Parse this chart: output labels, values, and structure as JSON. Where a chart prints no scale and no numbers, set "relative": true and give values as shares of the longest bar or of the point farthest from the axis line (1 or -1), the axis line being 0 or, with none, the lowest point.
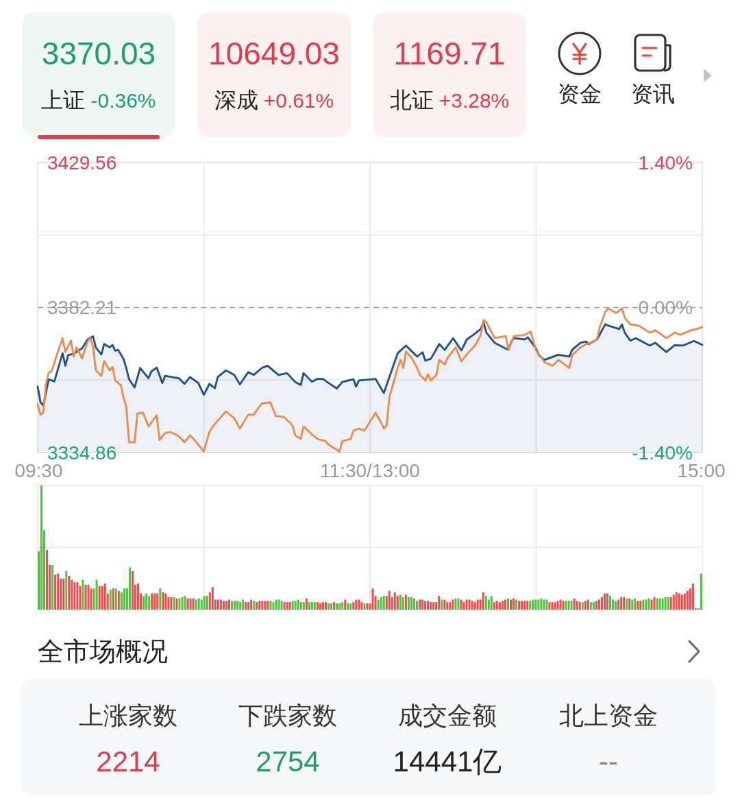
{
  "chart_data": [
    {
      "type": "other",
      "categories": [
        "上证",
        "深成",
        "北证"
      ],
      "value_labels": [
        "3370.03",
        "10649.03",
        "1169.71"
      ],
      "annotations": [
        "-0.36%",
        "+0.61%",
        "+3.28%"
      ],
      "colors": [
        "#1f9e6c",
        "#e03c4a",
        "#e03c4a"
      ]
    },
    {
      "type": "other",
      "annotations": [
        "资金",
        "资讯"
      ]
    },
    {
      "type": "line",
      "tick_labels": "y",
      "xlim": [
        9.5,
        15
      ],
      "xticks": [
        {
          "value": 9.5,
          "label": "09:30"
        },
        {
          "value": 10.875,
          "label": null
        },
        {
          "value": 12.25,
          "label": "11:30/13:00"
        },
        {
          "value": 13.625,
          "label": null
        },
        {
          "value": 15,
          "label": "15:00"
        }
      ],
      "ylim": [
        3334.86,
        3429.56
      ],
      "yticks": [
        3334.86,
        {
          "value": 3358.54,
          "label": null
        },
        3382.21,
        {
          "value": 3405.89,
          "label": null
        },
        3429.56
      ],
      "y2lim": [
        -1.4,
        1.4
      ],
      "y2ticks": [
        {
          "value": -1.4,
          "label": "-1.40%"
        },
        {
          "value": 0,
          "label": "0.00%"
        },
        {
          "value": 1.4,
          "label": "1.40%"
        }
      ],
      "ref_lines": [
        {
          "axis": "y",
          "value": 3382.21,
          "color": "#9a9a9a",
          "line_style": "dashed"
        }
      ],
      "grid": true,
      "series": [
        {
          "type": "area",
          "color": "#1d4f91",
          "x": [
            9.5,
            9.523,
            9.546,
            9.592,
            9.615,
            9.638,
            9.706,
            9.729,
            9.752,
            9.798,
            9.867,
            9.913,
            9.958,
            9.981,
            10.027,
            10.05,
            10.096,
            10.119,
            10.142,
            10.165,
            10.21,
            10.233,
            10.256,
            10.302,
            10.348,
            10.417,
            10.44,
            10.485,
            10.531,
            10.554,
            10.669,
            10.715,
            10.76,
            10.829,
            10.875,
            10.921,
            10.967,
            10.99,
            11.058,
            11.127,
            11.173,
            11.242,
            11.288,
            11.356,
            11.402,
            11.494,
            11.563,
            11.631,
            11.677,
            11.7,
            11.769,
            11.815,
            11.86,
            11.906,
            11.975,
            12.021,
            12.113,
            12.135,
            12.158,
            12.296,
            12.365,
            12.41,
            12.479,
            12.548,
            12.64,
            12.685,
            12.708,
            12.754,
            12.823,
            12.869,
            12.938,
            13.006,
            13.052,
            13.098,
            13.167,
            13.19,
            13.213,
            13.281,
            13.396,
            13.419,
            13.442,
            13.533,
            13.556,
            13.625,
            13.648,
            13.694,
            13.808,
            13.9,
            13.923,
            13.992,
            14.038,
            14.06,
            14.129,
            14.198,
            14.221,
            14.313,
            14.335,
            14.358,
            14.404,
            14.45,
            14.565,
            14.61,
            14.702,
            14.771,
            14.84,
            14.931,
            15
          ],
          "values": [
            3356.4,
            3351.3,
            3350.2,
            3358.8,
            3358.4,
            3358.1,
            3367.3,
            3363.2,
            3366.7,
            3367.1,
            3368.9,
            3371.8,
            3372.8,
            3369.2,
            3366.9,
            3370.3,
            3369.2,
            3370.0,
            3368.1,
            3368.4,
            3365.5,
            3362.5,
            3358.8,
            3356.1,
            3362.5,
            3359.1,
            3361.3,
            3362.6,
            3357.6,
            3359.9,
            3359.1,
            3357.3,
            3359.5,
            3357.6,
            3353.7,
            3357.3,
            3355.9,
            3359.5,
            3361.7,
            3360.2,
            3357.1,
            3361.1,
            3360.2,
            3362.5,
            3363.2,
            3360.2,
            3360.8,
            3357.9,
            3356.9,
            3360.8,
            3358.0,
            3358.9,
            3358.9,
            3357.6,
            3355.8,
            3357.9,
            3358.8,
            3356.4,
            3358.4,
            3358.9,
            3354.3,
            3359.5,
            3367.3,
            3369.8,
            3366.2,
            3367.6,
            3364.9,
            3365.5,
            3370.3,
            3368.4,
            3372.2,
            3368.2,
            3371.8,
            3373.1,
            3375.2,
            3377.4,
            3374.0,
            3370.7,
            3368.4,
            3371.1,
            3372.2,
            3371.8,
            3372.5,
            3368.8,
            3366.6,
            3365.1,
            3366.8,
            3366.2,
            3368.4,
            3370.7,
            3371.1,
            3370.3,
            3371.8,
            3376.8,
            3376.3,
            3375.2,
            3376.7,
            3374.0,
            3371.4,
            3372.2,
            3369.8,
            3370.7,
            3367.7,
            3369.9,
            3369.8,
            3371.3,
            3370.0
          ]
        },
        {
          "type": "line",
          "color": "#ec8a4c",
          "x": [
            9.5,
            9.523,
            9.546,
            9.569,
            9.592,
            9.615,
            9.66,
            9.706,
            9.729,
            9.775,
            9.798,
            9.821,
            9.867,
            9.913,
            9.935,
            9.958,
            9.981,
            10.027,
            10.05,
            10.096,
            10.119,
            10.142,
            10.188,
            10.21,
            10.233,
            10.256,
            10.302,
            10.325,
            10.371,
            10.417,
            10.485,
            10.508,
            10.554,
            10.6,
            10.669,
            10.715,
            10.76,
            10.806,
            10.875,
            10.921,
            10.944,
            10.99,
            11.058,
            11.127,
            11.173,
            11.242,
            11.288,
            11.333,
            11.356,
            11.425,
            11.471,
            11.54,
            11.608,
            11.631,
            11.677,
            11.7,
            11.769,
            11.815,
            11.883,
            11.906,
            11.998,
            12.021,
            12.09,
            12.113,
            12.158,
            12.204,
            12.296,
            12.342,
            12.365,
            12.388,
            12.41,
            12.479,
            12.502,
            12.525,
            12.548,
            12.594,
            12.64,
            12.663,
            12.708,
            12.731,
            12.754,
            12.8,
            12.823,
            12.869,
            12.892,
            12.96,
            13.006,
            13.052,
            13.121,
            13.167,
            13.19,
            13.213,
            13.281,
            13.373,
            13.396,
            13.442,
            13.533,
            13.579,
            13.625,
            13.671,
            13.694,
            13.763,
            13.808,
            13.9,
            13.923,
            13.992,
            14.038,
            14.083,
            14.129,
            14.152,
            14.198,
            14.221,
            14.29,
            14.335,
            14.358,
            14.404,
            14.473,
            14.565,
            14.61,
            14.679,
            14.702,
            14.771,
            14.817,
            14.908,
            14.954,
            15
          ],
          "values": [
            3350.7,
            3347.2,
            3347.9,
            3357.3,
            3361.0,
            3361.3,
            3366.9,
            3372.2,
            3367.7,
            3371.4,
            3366.2,
            3369.2,
            3365.6,
            3371.1,
            3372.2,
            3369.6,
            3361.7,
            3359.9,
            3364.7,
            3361.7,
            3362.8,
            3358.4,
            3356.9,
            3352.8,
            3349.8,
            3338.2,
            3338.2,
            3347.6,
            3347.9,
            3343.4,
            3347.0,
            3339.0,
            3341.2,
            3341.6,
            3340.1,
            3338.2,
            3340.5,
            3338.6,
            3335.2,
            3341.6,
            3343.1,
            3345.3,
            3348.3,
            3346.1,
            3342.7,
            3347.2,
            3347.2,
            3349.8,
            3350.9,
            3351.3,
            3346.8,
            3346.4,
            3343.8,
            3340.5,
            3339.3,
            3343.4,
            3340.8,
            3339.3,
            3338.6,
            3337.5,
            3335.2,
            3338.6,
            3339.3,
            3342.0,
            3342.7,
            3342.0,
            3347.9,
            3344.6,
            3342.7,
            3343.8,
            3352.8,
            3362.5,
            3365.1,
            3362.5,
            3367.8,
            3365.8,
            3362.5,
            3360.2,
            3358.4,
            3360.4,
            3358.4,
            3360.2,
            3365.1,
            3363.6,
            3365.8,
            3369.2,
            3364.6,
            3366.9,
            3369.9,
            3373.3,
            3378.1,
            3377.4,
            3372.2,
            3372.9,
            3368.4,
            3372.9,
            3373.3,
            3374.4,
            3368.1,
            3365.8,
            3364.3,
            3363.2,
            3365.1,
            3362.5,
            3366.6,
            3369.2,
            3370.3,
            3370.7,
            3371.8,
            3375.9,
            3380.8,
            3381.9,
            3380.4,
            3382.0,
            3378.9,
            3376.7,
            3376.3,
            3374.0,
            3374.8,
            3372.9,
            3372.2,
            3374.0,
            3373.3,
            3374.8,
            3375.2,
            3375.8
          ]
        }
      ]
    },
    {
      "type": "bar",
      "relative": true,
      "grid": true,
      "categories": [
        "09:30",
        null,
        null,
        null,
        null,
        null,
        null,
        null,
        null,
        null,
        null,
        null,
        null,
        null,
        null,
        null,
        null,
        null,
        null,
        null,
        null,
        null,
        null,
        null,
        null,
        null,
        null,
        null,
        null,
        null,
        null,
        null,
        null,
        null,
        null,
        null,
        null,
        null,
        null,
        null,
        null,
        null,
        null,
        null,
        null,
        null,
        null,
        null,
        null,
        null,
        null,
        null,
        null,
        null,
        null,
        null,
        null,
        null,
        null,
        null,
        null,
        null,
        null,
        null,
        null,
        null,
        null,
        null,
        null,
        null,
        null,
        null,
        null,
        null,
        null,
        null,
        null,
        null,
        null,
        null,
        null,
        null,
        null,
        null,
        null,
        null,
        null,
        null,
        null,
        null,
        null,
        null,
        null,
        null,
        null,
        null,
        null,
        null,
        null,
        null,
        null,
        null,
        null,
        null,
        null,
        null,
        null,
        null,
        null,
        null,
        null,
        null,
        null,
        null,
        null,
        null,
        null,
        null,
        null,
        null,
        "11:30/13:00",
        null,
        null,
        null,
        null,
        null,
        null,
        null,
        null,
        null,
        null,
        null,
        null,
        null,
        null,
        null,
        null,
        null,
        null,
        null,
        null,
        null,
        null,
        null,
        null,
        null,
        null,
        null,
        null,
        null,
        null,
        null,
        null,
        null,
        null,
        null,
        null,
        null,
        null,
        null,
        null,
        null,
        null,
        null,
        null,
        null,
        null,
        null,
        null,
        null,
        null,
        null,
        null,
        null,
        null,
        null,
        null,
        null,
        null,
        null,
        null,
        null,
        null,
        null,
        null,
        null,
        null,
        null,
        null,
        null,
        null,
        null,
        null,
        null,
        null,
        null,
        null,
        null,
        null,
        null,
        null,
        null,
        null,
        null,
        null,
        null,
        null,
        null,
        null,
        null,
        null,
        null,
        null,
        null,
        null,
        null,
        null,
        null,
        null,
        null,
        null,
        null,
        null,
        null,
        null,
        null,
        null,
        null,
        null,
        null,
        null,
        null,
        null,
        null,
        null,
        null,
        null,
        null,
        null,
        null,
        "15:00"
      ],
      "values": [
        0.47,
        1.0,
        0.64,
        0.48,
        0.36,
        0.36,
        0.28,
        0.29,
        0.25,
        0.25,
        0.31,
        0.27,
        0.24,
        0.22,
        0.22,
        0.19,
        0.24,
        0.2,
        0.2,
        0.17,
        0.17,
        0.24,
        0.19,
        0.19,
        0.21,
        0.13,
        0.16,
        0.17,
        0.17,
        0.15,
        0.14,
        0.17,
        0.17,
        0.34,
        0.31,
        0.2,
        0.21,
        0.13,
        0.11,
        0.13,
        0.11,
        0.13,
        0.13,
        0.13,
        0.17,
        0.14,
        0.13,
        0.1,
        0.1,
        0.1,
        0.09,
        0.09,
        0.1,
        0.11,
        0.09,
        0.09,
        0.09,
        0.08,
        0.09,
        0.08,
        0.11,
        0.11,
        0.14,
        0.18,
        0.08,
        0.08,
        0.08,
        0.07,
        0.07,
        0.08,
        0.07,
        0.07,
        0.07,
        0.06,
        0.08,
        0.06,
        0.06,
        0.08,
        0.07,
        0.06,
        0.07,
        0.07,
        0.07,
        0.07,
        0.07,
        0.06,
        0.08,
        0.08,
        0.07,
        0.06,
        0.06,
        0.06,
        0.07,
        0.07,
        0.08,
        0.06,
        0.06,
        0.09,
        0.06,
        0.06,
        0.06,
        0.06,
        0.05,
        0.06,
        0.06,
        0.05,
        0.05,
        0.06,
        0.05,
        0.05,
        0.06,
        0.08,
        0.05,
        0.05,
        0.06,
        0.08,
        0.08,
        0.06,
        0.05,
        0.05,
        0.05,
        0.17,
        0.11,
        0.08,
        0.1,
        0.11,
        0.11,
        0.15,
        0.1,
        0.14,
        0.11,
        0.12,
        0.1,
        0.12,
        0.1,
        0.1,
        0.09,
        0.07,
        0.08,
        0.08,
        0.07,
        0.07,
        0.06,
        0.06,
        0.06,
        0.11,
        0.08,
        0.08,
        0.06,
        0.06,
        0.08,
        0.09,
        0.09,
        0.08,
        0.06,
        0.08,
        0.08,
        0.07,
        0.06,
        0.08,
        0.08,
        0.14,
        0.11,
        0.08,
        0.11,
        0.06,
        0.07,
        0.06,
        0.07,
        0.08,
        0.09,
        0.08,
        0.09,
        0.08,
        0.07,
        0.07,
        0.07,
        0.07,
        0.07,
        0.08,
        0.08,
        0.08,
        0.09,
        0.08,
        0.08,
        0.06,
        0.06,
        0.06,
        0.07,
        0.08,
        0.07,
        0.07,
        0.07,
        0.07,
        0.09,
        0.07,
        0.06,
        0.06,
        0.07,
        0.08,
        0.06,
        0.06,
        0.07,
        0.08,
        0.1,
        0.13,
        0.13,
        0.11,
        0.08,
        0.07,
        0.08,
        0.1,
        0.1,
        0.09,
        0.09,
        0.08,
        0.09,
        0.07,
        0.07,
        0.08,
        0.08,
        0.09,
        0.08,
        0.1,
        0.09,
        0.09,
        0.09,
        0.1,
        0.1,
        0.1,
        0.12,
        0.14,
        0.13,
        0.12,
        0.13,
        0.15,
        0.17,
        0.21,
        0.01,
        0.01,
        0.29
      ],
      "colors": [
        "#4cc43a",
        "#4cc43a",
        "#4cc43a",
        "#f04a4c",
        "#f04a4c",
        "#4cc43a",
        "#f04a4c",
        "#f04a4c",
        "#f04a4c",
        "#f04a4c",
        "#4cc43a",
        "#f04a4c",
        "#f04a4c",
        "#f04a4c",
        "#f04a4c",
        "#f04a4c",
        "#4cc43a",
        "#f04a4c",
        "#f04a4c",
        "#f04a4c",
        "#4cc43a",
        "#4cc43a",
        "#f04a4c",
        "#f04a4c",
        "#f04a4c",
        "#f04a4c",
        "#4cc43a",
        "#f04a4c",
        "#4cc43a",
        "#f04a4c",
        "#4cc43a",
        "#4cc43a",
        "#4cc43a",
        "#4cc43a",
        "#f04a4c",
        "#f04a4c",
        "#f04a4c",
        "#f04a4c",
        "#4cc43a",
        "#4cc43a",
        "#4cc43a",
        "#f04a4c",
        "#f04a4c",
        "#f04a4c",
        "#4cc43a",
        "#f04a4c",
        "#f04a4c",
        "#f04a4c",
        "#f04a4c",
        "#4cc43a",
        "#f04a4c",
        "#4cc43a",
        "#4cc43a",
        "#4cc43a",
        "#f04a4c",
        "#f04a4c",
        "#f04a4c",
        "#4cc43a",
        "#4cc43a",
        "#4cc43a",
        "#4cc43a",
        "#4cc43a",
        "#f04a4c",
        "#f04a4c",
        "#f04a4c",
        "#f04a4c",
        "#f04a4c",
        "#f04a4c",
        "#f04a4c",
        "#f04a4c",
        "#4cc43a",
        "#4cc43a",
        "#4cc43a",
        "#4cc43a",
        "#4cc43a",
        "#f04a4c",
        "#f04a4c",
        "#f04a4c",
        "#4cc43a",
        "#f04a4c",
        "#f04a4c",
        "#f04a4c",
        "#f04a4c",
        "#f04a4c",
        "#4cc43a",
        "#4cc43a",
        "#4cc43a",
        "#4cc43a",
        "#4cc43a",
        "#f04a4c",
        "#f04a4c",
        "#f04a4c",
        "#4cc43a",
        "#4cc43a",
        "#4cc43a",
        "#4cc43a",
        "#4cc43a",
        "#f04a4c",
        "#4cc43a",
        "#4cc43a",
        "#4cc43a",
        "#f04a4c",
        "#f04a4c",
        "#f04a4c",
        "#f04a4c",
        "#4cc43a",
        "#4cc43a",
        "#f04a4c",
        "#4cc43a",
        "#4cc43a",
        "#4cc43a",
        "#f04a4c",
        "#4cc43a",
        "#4cc43a",
        "#f04a4c",
        "#f04a4c",
        "#f04a4c",
        "#f04a4c",
        "#4cc43a",
        "#f04a4c",
        "#f04a4c",
        "#f04a4c",
        "#f04a4c",
        "#4cc43a",
        "#4cc43a",
        "#4cc43a",
        "#f04a4c",
        "#f04a4c",
        "#f04a4c",
        "#f04a4c",
        "#f04a4c",
        "#4cc43a",
        "#4cc43a",
        "#f04a4c",
        "#4cc43a",
        "#4cc43a",
        "#4cc43a",
        "#4cc43a",
        "#f04a4c",
        "#f04a4c",
        "#f04a4c",
        "#f04a4c",
        "#f04a4c",
        "#f04a4c",
        "#f04a4c",
        "#f04a4c",
        "#4cc43a",
        "#f04a4c",
        "#f04a4c",
        "#f04a4c",
        "#f04a4c",
        "#4cc43a",
        "#4cc43a",
        "#f04a4c",
        "#f04a4c",
        "#f04a4c",
        "#f04a4c",
        "#f04a4c",
        "#f04a4c",
        "#f04a4c",
        "#f04a4c",
        "#f04a4c",
        "#4cc43a",
        "#4cc43a",
        "#4cc43a",
        "#f04a4c",
        "#f04a4c",
        "#f04a4c",
        "#f04a4c",
        "#f04a4c",
        "#4cc43a",
        "#f04a4c",
        "#f04a4c",
        "#4cc43a",
        "#f04a4c",
        "#f04a4c",
        "#f04a4c",
        "#f04a4c",
        "#4cc43a",
        "#4cc43a",
        "#4cc43a",
        "#4cc43a",
        "#4cc43a",
        "#4cc43a",
        "#4cc43a",
        "#f04a4c",
        "#f04a4c",
        "#f04a4c",
        "#f04a4c",
        "#f04a4c",
        "#f04a4c",
        "#4cc43a",
        "#4cc43a",
        "#4cc43a",
        "#f04a4c",
        "#f04a4c",
        "#f04a4c",
        "#4cc43a",
        "#f04a4c",
        "#f04a4c",
        "#4cc43a",
        "#4cc43a",
        "#f04a4c",
        "#f04a4c",
        "#f04a4c",
        "#f04a4c",
        "#f04a4c",
        "#4cc43a",
        "#4cc43a",
        "#4cc43a",
        "#f04a4c",
        "#f04a4c",
        "#f04a4c",
        "#4cc43a",
        "#f04a4c",
        "#4cc43a",
        "#4cc43a",
        "#f04a4c",
        "#f04a4c",
        "#4cc43a",
        "#4cc43a",
        "#4cc43a",
        "#f04a4c",
        "#f04a4c",
        "#4cc43a",
        "#4cc43a",
        "#4cc43a",
        "#4cc43a",
        "#4cc43a",
        "#f04a4c",
        "#f04a4c",
        "#f04a4c",
        "#f04a4c",
        "#f04a4c",
        "#f04a4c",
        "#f04a4c",
        "#f04a4c",
        "#f04a4c",
        "#f04a4c",
        "#4cc43a",
        "#4cc43a"
      ]
    },
    {
      "type": "other",
      "title": "全市场概况",
      "categories": [
        "上涨家数",
        "下跌家数",
        "成交金额",
        "北上资金"
      ],
      "value_labels": [
        "2214",
        "2754",
        "14441亿",
        "--"
      ]
    }
  ]
}
